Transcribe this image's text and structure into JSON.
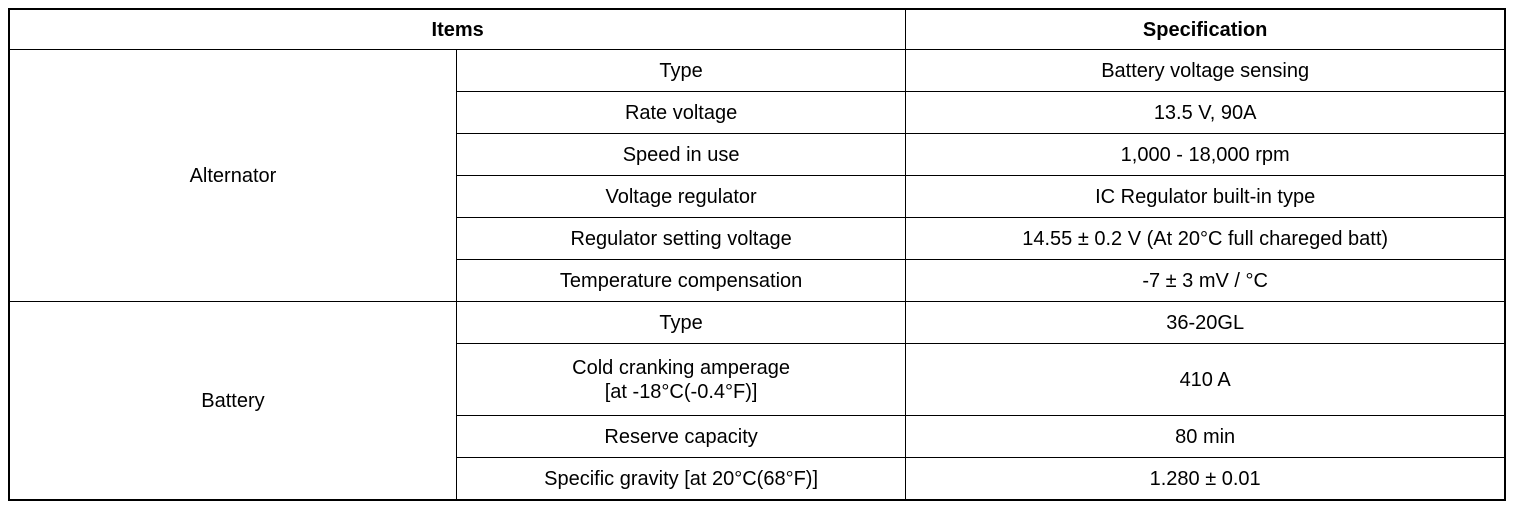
{
  "table": {
    "header": [
      "Items",
      "Specification"
    ],
    "groups": [
      {
        "label": "Alternator",
        "rows": [
          [
            "Type",
            "Battery voltage sensing"
          ],
          [
            "Rate voltage",
            "13.5 V, 90A"
          ],
          [
            "Speed in use",
            "1,000 - 18,000 rpm"
          ],
          [
            "Voltage regulator",
            "IC Regulator built-in type"
          ],
          [
            "Regulator setting voltage",
            "14.55 ± 0.2 V (At 20°C full chareged batt)"
          ],
          [
            "Temperature compensation",
            "-7 ± 3 mV / °C"
          ]
        ]
      },
      {
        "label": "Battery",
        "rows": [
          [
            "Type",
            "36-20GL"
          ],
          [
            "Cold cranking amperage\n[at -18°C(-0.4°F)]",
            "410 A"
          ],
          [
            "Reserve capacity",
            "80 min"
          ],
          [
            "Specific gravity [at 20°C(68°F)]",
            "1.280 ± 0.01"
          ]
        ]
      }
    ]
  }
}
